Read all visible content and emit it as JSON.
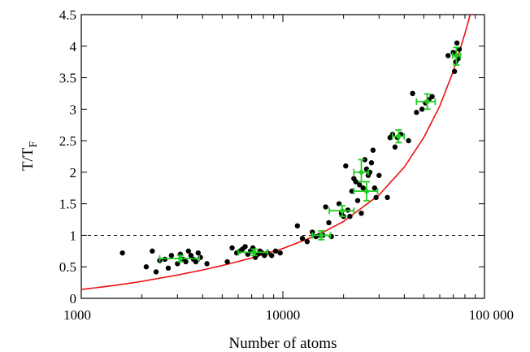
{
  "chart_data": {
    "type": "scatter",
    "xlabel": "Number of atoms",
    "ylabel": "T/T",
    "ylabel_subscript": "F",
    "xscale": "log",
    "xlim": [
      1000,
      100000
    ],
    "ylim": [
      0,
      4.5
    ],
    "x_ticks": [
      1000,
      10000,
      100000
    ],
    "x_tick_labels": [
      "1000",
      "10000",
      "100 000"
    ],
    "y_ticks": [
      0,
      0.5,
      1,
      1.5,
      2,
      2.5,
      3,
      3.5,
      4,
      4.5
    ],
    "y_tick_labels": [
      "0",
      "0.5",
      "1",
      "1.5",
      "2",
      "2.5",
      "3",
      "3.5",
      "4",
      "4.5"
    ],
    "grid": false,
    "reference_line": {
      "y": 1,
      "style": "dashed",
      "color": "#000000"
    },
    "series": [
      {
        "kind": "points",
        "color": "#000000",
        "x": [
          1600,
          2100,
          2250,
          2350,
          2450,
          2600,
          2700,
          2800,
          3000,
          3100,
          3200,
          3300,
          3400,
          3500,
          3600,
          3700,
          3800,
          3900,
          4200,
          5300,
          5600,
          5900,
          6100,
          6300,
          6500,
          6700,
          6900,
          7100,
          7300,
          7500,
          7700,
          7900,
          8100,
          8400,
          8800,
          9200,
          9700,
          11800,
          12500,
          13200,
          14000,
          14600,
          15200,
          15800,
          16300,
          16900,
          17400,
          19000,
          19500,
          20000,
          20500,
          21000,
          21500,
          22000,
          22500,
          23000,
          23500,
          24000,
          24500,
          25000,
          25500,
          26000,
          26500,
          27000,
          27500,
          28000,
          28500,
          29000,
          30000,
          33000,
          34000,
          35000,
          36000,
          37000,
          38500,
          42000,
          44000,
          46000,
          49000,
          51000,
          53000,
          55000,
          66000,
          70000,
          71000,
          72000,
          73000,
          74000,
          75000
        ],
        "y": [
          0.72,
          0.5,
          0.75,
          0.42,
          0.6,
          0.62,
          0.48,
          0.68,
          0.55,
          0.7,
          0.62,
          0.58,
          0.75,
          0.68,
          0.62,
          0.58,
          0.72,
          0.65,
          0.55,
          0.58,
          0.8,
          0.72,
          0.75,
          0.78,
          0.82,
          0.7,
          0.75,
          0.8,
          0.65,
          0.7,
          0.75,
          0.72,
          0.68,
          0.72,
          0.68,
          0.75,
          0.72,
          1.15,
          0.95,
          0.9,
          1.05,
          0.98,
          1.0,
          1.0,
          1.45,
          1.2,
          0.98,
          1.5,
          1.35,
          1.3,
          2.1,
          1.4,
          1.3,
          1.7,
          1.9,
          1.85,
          1.55,
          1.8,
          1.35,
          1.75,
          2.2,
          2.05,
          1.95,
          2.0,
          2.15,
          2.35,
          1.75,
          1.6,
          1.95,
          1.6,
          2.55,
          2.6,
          2.4,
          2.55,
          2.6,
          2.5,
          3.25,
          2.95,
          3.0,
          3.1,
          3.15,
          3.2,
          3.85,
          3.9,
          3.6,
          3.75,
          4.05,
          3.8,
          3.95
        ]
      },
      {
        "kind": "error_points",
        "color": "#22cc22",
        "points": [
          {
            "x": 3100,
            "y": 0.63,
            "x_err": [
              2450,
              3850
            ],
            "y_err": [
              0.58,
              0.68
            ]
          },
          {
            "x": 7200,
            "y": 0.73,
            "x_err": [
              6000,
              8400
            ],
            "y_err": [
              0.68,
              0.78
            ]
          },
          {
            "x": 15500,
            "y": 1.0,
            "x_err": [
              14000,
              17200
            ],
            "y_err": [
              0.93,
              1.07
            ]
          },
          {
            "x": 19700,
            "y": 1.39,
            "x_err": [
              17000,
              22500
            ],
            "y_err": [
              1.3,
              1.47
            ]
          },
          {
            "x": 24500,
            "y": 2.0,
            "x_err": [
              22500,
              26500
            ],
            "y_err": [
              1.85,
              2.2
            ]
          },
          {
            "x": 26000,
            "y": 1.7,
            "x_err": [
              22500,
              29500
            ],
            "y_err": [
              1.55,
              1.85
            ]
          },
          {
            "x": 37500,
            "y": 2.57,
            "x_err": [
              35000,
              40000
            ],
            "y_err": [
              2.47,
              2.67
            ]
          },
          {
            "x": 52000,
            "y": 3.12,
            "x_err": [
              46000,
              57000
            ],
            "y_err": [
              3.0,
              3.24
            ]
          },
          {
            "x": 72500,
            "y": 3.85,
            "x_err": [
              69500,
              76000
            ],
            "y_err": [
              3.7,
              3.98
            ]
          }
        ]
      },
      {
        "kind": "fit_curve",
        "color": "#ee1111",
        "x": [
          1000,
          1500,
          2000,
          3000,
          4000,
          5000,
          7000,
          10000,
          15000,
          20000,
          30000,
          40000,
          50000,
          60000,
          70000,
          80000,
          85000
        ],
        "y": [
          0.14,
          0.21,
          0.27,
          0.37,
          0.45,
          0.52,
          0.64,
          0.79,
          1.01,
          1.22,
          1.64,
          2.08,
          2.55,
          3.05,
          3.6,
          4.2,
          4.5
        ]
      }
    ]
  }
}
